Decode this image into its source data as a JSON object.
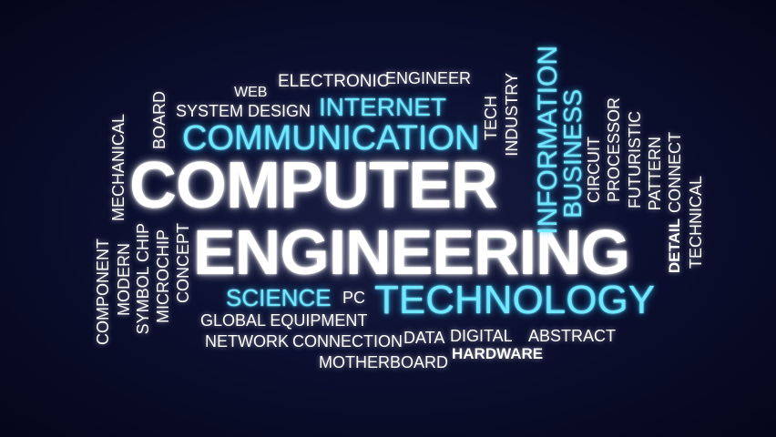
{
  "words": {
    "computer": "COMPUTER",
    "engineering": "ENGINEERING",
    "technology": "TECHNOLOGY",
    "communication": "COMMUNICATION",
    "internet": "INTERNET",
    "science": "SCIENCE",
    "information": "INFORMATION",
    "business": "BUSINESS",
    "electronic": "ELECTRONIC",
    "engineer": "ENGINEER",
    "web": "WEB",
    "system_design": "SYSTEM DESIGN",
    "board": "BOARD",
    "mechanical": "MECHANICAL",
    "tech": "TECH",
    "industry": "INDUSTRY",
    "circuit": "CIRCUIT",
    "processor": "PROCESSOR",
    "futuristic": "FUTURISTIC",
    "pattern": "PATTERN",
    "connect": "CONNECT",
    "detail": "DETAIL",
    "technical": "TECHNICAL",
    "component": "COMPONENT",
    "modern": "MODERN",
    "symbol_chip": "SYMBOL CHIP",
    "microchip": "MICROCHIP",
    "concept": "CONCEPT",
    "pc": "PC",
    "global_equipment": "GLOBAL EQUIPMENT",
    "network": "NETWORK",
    "connection": "CONNECTION",
    "data": "DATA",
    "digital": "DIGITAL",
    "abstract": "ABSTRACT",
    "hardware": "HARDWARE",
    "motherboard": "MOTHERBOARD"
  },
  "colors": {
    "background": "#0c1030",
    "white_text": "#ffffff",
    "cyan_text": "#6fe8ff"
  }
}
